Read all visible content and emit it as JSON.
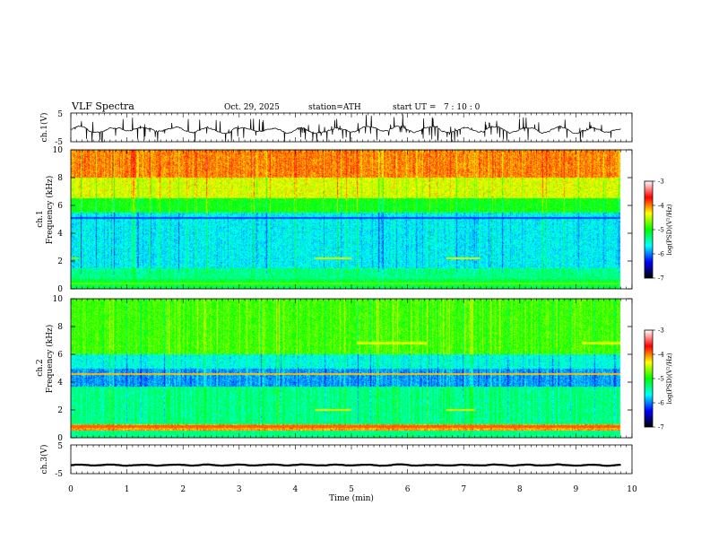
{
  "header": {
    "title": "VLF Spectra",
    "date": "Oct. 29, 2025",
    "station": "station=ATH",
    "start": "start UT =   7 : 10 : 0"
  },
  "chart_data": {
    "type": "heatmap",
    "xlabel": "Time (min)",
    "xlim": [
      0,
      10
    ],
    "x_ticks": [
      "0",
      "1",
      "2",
      "3",
      "4",
      "5",
      "6",
      "7",
      "8",
      "9",
      "10"
    ],
    "panels": [
      {
        "id": "ch1_waveform",
        "type": "line",
        "ylabel": "ch.1(V)",
        "ylim": [
          -5,
          5
        ],
        "y_ticks": [
          "5",
          "-5"
        ],
        "data_end_min": 9.8,
        "mean": -0.8,
        "noise_amplitude": 1.6,
        "spike_amplitude": 4.5
      },
      {
        "id": "ch1_spectrogram",
        "type": "heatmap",
        "ylabel_channel": "ch.1",
        "ylabel": "Frequency (kHz)",
        "ylim": [
          0,
          10
        ],
        "y_ticks": [
          "0",
          "2",
          "4",
          "6",
          "8",
          "10"
        ],
        "data_end_min": 9.8,
        "colorbar": {
          "label": "log(PSD)(V²/Hz)",
          "range": [
            -7,
            -3
          ],
          "ticks": [
            "-3",
            "-4",
            "-5",
            "-6",
            "-7"
          ]
        },
        "bands": [
          {
            "f": [
              8.0,
              10.0
            ],
            "level": -3.4
          },
          {
            "f": [
              6.5,
              8.0
            ],
            "level": -3.9
          },
          {
            "f": [
              5.5,
              6.5
            ],
            "level": -4.6
          },
          {
            "f": [
              1.5,
              5.5
            ],
            "level": -5.4
          },
          {
            "f": [
              0.7,
              1.5
            ],
            "level": -5.0
          },
          {
            "f": [
              0.0,
              0.7
            ],
            "level": -4.8
          }
        ],
        "tones": [
          {
            "f": 2.2,
            "level": -4.2,
            "t": [
              0.0,
              0.15
            ]
          },
          {
            "f": 2.2,
            "level": -3.9,
            "t": [
              4.35,
              5.0
            ]
          },
          {
            "f": 2.2,
            "level": -3.9,
            "t": [
              6.7,
              7.3
            ]
          },
          {
            "f": 5.1,
            "level": -6.0,
            "t": [
              0.0,
              9.8
            ]
          },
          {
            "f": 0.4,
            "level": -4.3,
            "t": [
              0.0,
              9.8
            ]
          }
        ]
      },
      {
        "id": "ch2_spectrogram",
        "type": "heatmap",
        "ylabel_channel": "ch.2",
        "ylabel": "Frequency (kHz)",
        "ylim": [
          0,
          10
        ],
        "y_ticks": [
          "0",
          "2",
          "4",
          "6",
          "8",
          "10"
        ],
        "data_end_min": 9.8,
        "colorbar": {
          "label": "log(PSD)(V²/Hz)",
          "range": [
            -7,
            -3
          ],
          "ticks": [
            "-3",
            "-4",
            "-5",
            "-6",
            "-7"
          ]
        },
        "bands": [
          {
            "f": [
              6.0,
              10.0
            ],
            "level": -4.4
          },
          {
            "f": [
              5.0,
              6.0
            ],
            "level": -5.3
          },
          {
            "f": [
              3.7,
              5.0
            ],
            "level": -5.7
          },
          {
            "f": [
              1.0,
              3.7
            ],
            "level": -5.0
          },
          {
            "f": [
              0.5,
              1.0
            ],
            "level": -3.5
          },
          {
            "f": [
              0.0,
              0.5
            ],
            "level": -5.0
          }
        ],
        "tones": [
          {
            "f": 6.8,
            "level": -3.9,
            "t": [
              5.1,
              6.35
            ]
          },
          {
            "f": 6.8,
            "level": -3.9,
            "t": [
              9.1,
              9.8
            ]
          },
          {
            "f": 4.6,
            "level": -3.6,
            "t": [
              0.0,
              9.8
            ]
          },
          {
            "f": 2.0,
            "level": -3.9,
            "t": [
              4.35,
              5.0
            ]
          },
          {
            "f": 2.0,
            "level": -3.9,
            "t": [
              6.7,
              7.2
            ]
          },
          {
            "f": 0.8,
            "level": -3.3,
            "t": [
              0.0,
              9.8
            ]
          }
        ]
      },
      {
        "id": "ch3_waveform",
        "type": "line",
        "ylabel": "ch.3(V)",
        "ylim": [
          -5,
          5
        ],
        "y_ticks": [
          "5",
          "-5"
        ],
        "data_end_min": 9.8,
        "mean": -2.0,
        "noise_amplitude": 0.3
      }
    ]
  },
  "colors": {
    "colormap": [
      "#000000",
      "#0000ff",
      "#00ffff",
      "#00ff00",
      "#ffff00",
      "#ff0000",
      "#ffffff"
    ]
  }
}
